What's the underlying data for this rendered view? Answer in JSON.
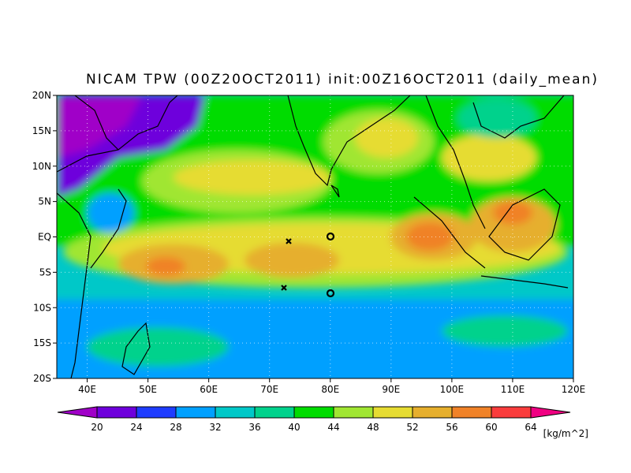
{
  "map": {
    "title": "NICAM TPW (00Z20OCT2011) init:00Z16OCT2011 (daily_mean)",
    "lon_ticks": [
      {
        "value": 40,
        "label": "40E"
      },
      {
        "value": 50,
        "label": "50E"
      },
      {
        "value": 60,
        "label": "60E"
      },
      {
        "value": 70,
        "label": "70E"
      },
      {
        "value": 80,
        "label": "80E"
      },
      {
        "value": 90,
        "label": "90E"
      },
      {
        "value": 100,
        "label": "100E"
      },
      {
        "value": 110,
        "label": "110E"
      },
      {
        "value": 120,
        "label": "120E"
      }
    ],
    "lat_ticks": [
      {
        "value": 20,
        "label": "20N"
      },
      {
        "value": 15,
        "label": "15N"
      },
      {
        "value": 10,
        "label": "10N"
      },
      {
        "value": 5,
        "label": "5N"
      },
      {
        "value": 0,
        "label": "EQ"
      },
      {
        "value": -5,
        "label": "5S"
      },
      {
        "value": -10,
        "label": "10S"
      },
      {
        "value": -15,
        "label": "15S"
      },
      {
        "value": -20,
        "label": "20S"
      }
    ],
    "colorbar": {
      "levels": [
        20,
        24,
        28,
        32,
        36,
        40,
        44,
        48,
        52,
        56,
        60,
        64
      ],
      "colors": [
        "#a000c8",
        "#6e00dc",
        "#1e3cff",
        "#00a0ff",
        "#00c8c8",
        "#00d28c",
        "#00dc00",
        "#a0e632",
        "#e6dc32",
        "#e6af2d",
        "#f08228",
        "#fa3c3c",
        "#f00082"
      ],
      "unit": "[kg/m^2]"
    }
  }
}
